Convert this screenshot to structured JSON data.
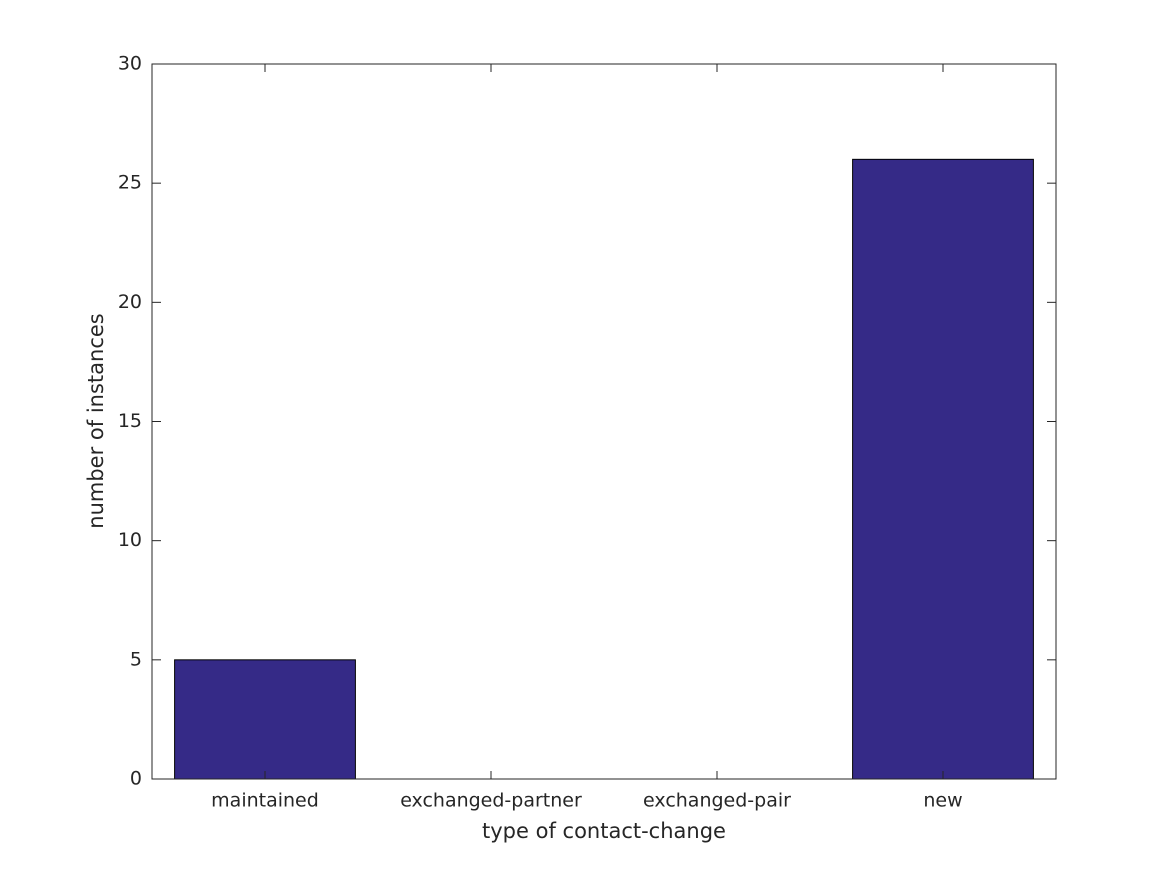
{
  "chart_data": {
    "type": "bar",
    "categories": [
      "maintained",
      "exchanged-partner",
      "exchanged-pair",
      "new"
    ],
    "values": [
      5,
      0,
      0,
      26
    ],
    "color": "#352a87",
    "xlabel": "type of contact-change",
    "ylabel": "number of instances",
    "ylim": [
      0,
      30
    ],
    "yticks": [
      0,
      5,
      10,
      15,
      20,
      25,
      30
    ],
    "grid": false
  }
}
